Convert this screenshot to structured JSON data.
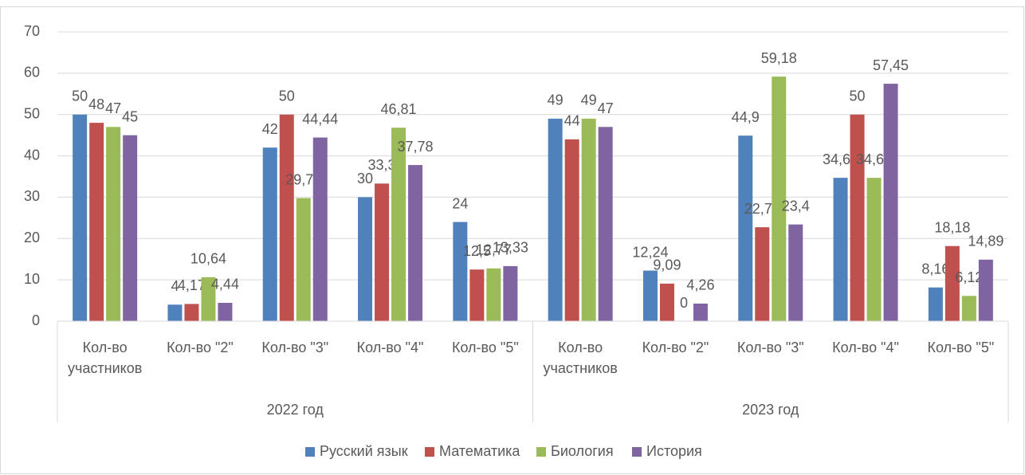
{
  "chart_data": {
    "type": "bar",
    "groups": [
      {
        "name": "2022 год",
        "categories": [
          "Кол-во участников",
          "Кол-во \"2\"",
          "Кол-во \"3\"",
          "Кол-во \"4\"",
          "Кол-во \"5\""
        ]
      },
      {
        "name": "2023 год",
        "categories": [
          "Кол-во участников",
          "Кол-во \"2\"",
          "Кол-во \"3\"",
          "Кол-во \"4\"",
          "Кол-во \"5\""
        ]
      }
    ],
    "series": [
      {
        "name": "Русский язык",
        "color": "#4f81bd",
        "values": [
          50,
          4,
          42,
          30,
          24,
          49,
          12.24,
          44.9,
          34.69,
          8.16
        ],
        "value_labels": [
          "50",
          "4",
          "42",
          "30",
          "24",
          "49",
          "12,24",
          "44,9",
          "34,69",
          "8,16"
        ]
      },
      {
        "name": "Математика",
        "color": "#c0504d",
        "values": [
          48,
          4.17,
          50,
          33.3,
          12.5,
          44,
          9.09,
          22.73,
          50,
          18.18
        ],
        "value_labels": [
          "48",
          "4,17",
          "50",
          "33,3",
          "12,5",
          "44",
          "9,09",
          "22,73",
          "50",
          "18,18"
        ]
      },
      {
        "name": "Биология",
        "color": "#9bbb59",
        "values": [
          47,
          10.64,
          29.79,
          46.81,
          12.77,
          49,
          0,
          59.18,
          34.69,
          6.12
        ],
        "value_labels": [
          "47",
          "10,64",
          "29,79",
          "46,81",
          "12,77",
          "49",
          "0",
          "59,18",
          "34,69",
          "6,12"
        ]
      },
      {
        "name": "История",
        "color": "#8064a2",
        "values": [
          45,
          4.44,
          44.44,
          37.78,
          13.33,
          47,
          4.26,
          23.4,
          57.45,
          14.89
        ],
        "value_labels": [
          "45",
          "4,44",
          "44,44",
          "37,78",
          "13,33",
          "47",
          "4,26",
          "23,4",
          "57,45",
          "14,89"
        ]
      }
    ],
    "ylim": [
      0,
      70
    ],
    "yticks": [
      0,
      10,
      20,
      30,
      40,
      50,
      60,
      70
    ],
    "grid": true,
    "legend": "bottom"
  }
}
